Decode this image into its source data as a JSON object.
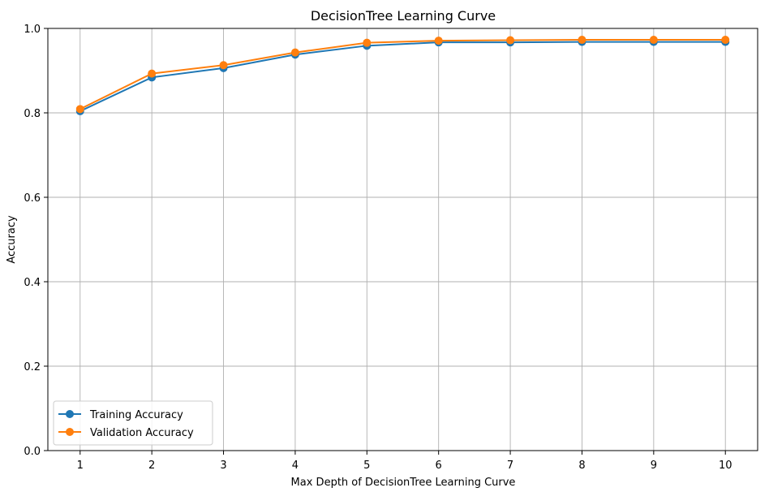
{
  "chart_data": {
    "type": "line",
    "title": "DecisionTree Learning Curve",
    "xlabel": "Max Depth of DecisionTree Learning Curve",
    "ylabel": "Accuracy",
    "x": [
      1,
      2,
      3,
      4,
      5,
      6,
      7,
      8,
      9,
      10
    ],
    "xticks": [
      "1",
      "2",
      "3",
      "4",
      "5",
      "6",
      "7",
      "8",
      "9",
      "10"
    ],
    "yticks": [
      0.0,
      0.2,
      0.4,
      0.6,
      0.8,
      1.0
    ],
    "ytick_labels": [
      "0.0",
      "0.2",
      "0.4",
      "0.6",
      "0.8",
      "1.0"
    ],
    "xlim": [
      0.55,
      10.45
    ],
    "ylim": [
      0.0,
      1.0
    ],
    "grid": true,
    "legend_position": "lower-left",
    "series": [
      {
        "name": "Training Accuracy",
        "color": "#1f77b4",
        "values": [
          0.804,
          0.884,
          0.906,
          0.938,
          0.959,
          0.967,
          0.967,
          0.968,
          0.968,
          0.968
        ]
      },
      {
        "name": "Validation Accuracy",
        "color": "#ff7f0e",
        "values": [
          0.809,
          0.893,
          0.913,
          0.943,
          0.966,
          0.971,
          0.972,
          0.973,
          0.973,
          0.973
        ]
      }
    ]
  }
}
